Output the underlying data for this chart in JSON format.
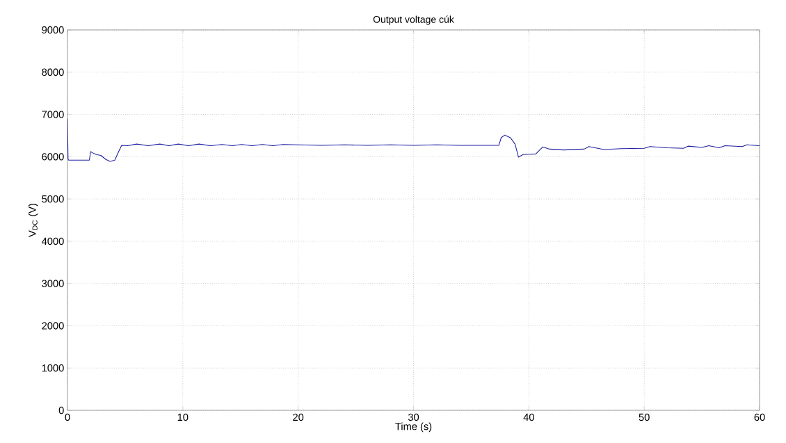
{
  "chart_data": {
    "type": "line",
    "title": "Output voltage cúk",
    "xlabel": "Time (s)",
    "ylabel": "V$_{DC}$ (V)",
    "x": [
      0,
      0.05,
      0.1,
      1.0,
      1.9,
      2.0,
      2.2,
      2.5,
      2.9,
      3.3,
      3.7,
      4.1,
      4.4,
      4.7,
      5.2,
      6.0,
      7.0,
      8.0,
      8.8,
      9.6,
      10.5,
      11.4,
      12.4,
      13.4,
      14.3,
      15.1,
      16.0,
      16.9,
      17.8,
      18.7,
      20,
      22,
      24,
      26,
      28,
      30,
      32,
      34,
      36,
      37.4,
      37.6,
      37.9,
      38.4,
      38.8,
      39.1,
      39.5,
      40.0,
      40.6,
      41.2,
      41.8,
      43,
      44.8,
      45.2,
      46.5,
      48,
      50,
      50.5,
      52,
      53.4,
      53.8,
      55,
      55.6,
      56.5,
      57,
      58.5,
      58.9,
      60
    ],
    "series": [
      {
        "color": "#1c1ca0",
        "values": [
          6900,
          5950,
          5920,
          5920,
          5920,
          6120,
          6090,
          6050,
          6030,
          5940,
          5885,
          5920,
          6100,
          6270,
          6260,
          6300,
          6260,
          6300,
          6260,
          6300,
          6260,
          6300,
          6260,
          6290,
          6260,
          6290,
          6260,
          6290,
          6260,
          6290,
          6280,
          6270,
          6280,
          6270,
          6280,
          6270,
          6280,
          6270,
          6270,
          6270,
          6450,
          6510,
          6450,
          6300,
          5990,
          6050,
          6060,
          6065,
          6230,
          6180,
          6160,
          6180,
          6240,
          6170,
          6190,
          6200,
          6240,
          6210,
          6200,
          6250,
          6220,
          6260,
          6210,
          6260,
          6240,
          6280,
          6260
        ]
      }
    ],
    "xlim": [
      0,
      60
    ],
    "ylim": [
      0,
      9000
    ],
    "xticks": [
      0,
      10,
      20,
      30,
      40,
      50,
      60
    ],
    "yticks": [
      0,
      1000,
      2000,
      3000,
      4000,
      5000,
      6000,
      7000,
      8000,
      9000
    ],
    "grid": true,
    "marker": "none",
    "line_style": "solid"
  }
}
